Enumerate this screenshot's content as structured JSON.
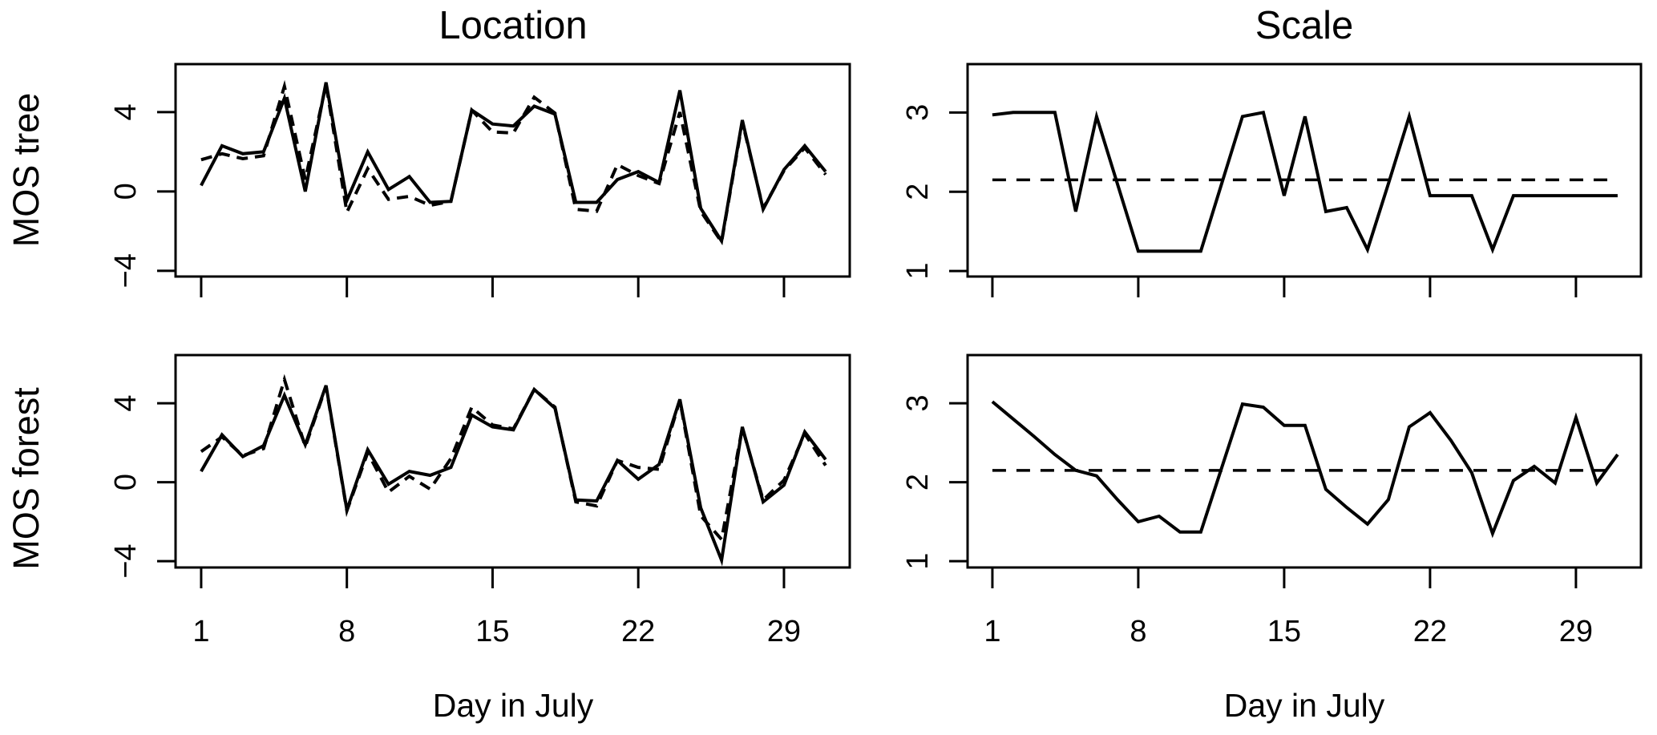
{
  "page": {
    "background": "#ffffff",
    "foreground": "#000000"
  },
  "column_titles": {
    "left": "Location",
    "right": "Scale"
  },
  "row_labels": {
    "top": "MOS tree",
    "bottom": "MOS forest"
  },
  "x_axis_label": "Day in July",
  "chart_data": [
    {
      "id": "location-mos-tree",
      "type": "line",
      "title": "Location",
      "row_label": "MOS tree",
      "xlabel": "",
      "x": [
        1,
        2,
        3,
        4,
        5,
        6,
        7,
        8,
        9,
        10,
        11,
        12,
        13,
        14,
        15,
        16,
        17,
        18,
        19,
        20,
        21,
        22,
        23,
        24,
        25,
        26,
        27,
        28,
        29,
        30,
        31
      ],
      "series": [
        {
          "name": "solid-line",
          "style": "solid",
          "color": "#000000",
          "values": [
            0.3,
            2.3,
            1.9,
            2.0,
            4.7,
            0.0,
            5.5,
            -0.45,
            2.0,
            0.1,
            0.75,
            -0.55,
            -0.5,
            4.1,
            3.4,
            3.3,
            4.3,
            3.9,
            -0.55,
            -0.55,
            0.6,
            1.0,
            0.45,
            5.1,
            -0.85,
            -2.5,
            3.6,
            -0.9,
            1.1,
            2.3,
            1.0
          ]
        },
        {
          "name": "dashed-line",
          "style": "dashed",
          "color": "#000000",
          "values": [
            1.6,
            1.9,
            1.65,
            1.8,
            5.3,
            0.6,
            5.4,
            -1.05,
            1.15,
            -0.4,
            -0.25,
            -0.7,
            -0.5,
            4.1,
            3.0,
            2.95,
            4.75,
            3.95,
            -0.9,
            -1.0,
            1.35,
            0.8,
            0.4,
            4.0,
            -1.0,
            -2.55,
            3.5,
            -0.85,
            1.05,
            2.2,
            0.85
          ]
        }
      ],
      "ref_line": null,
      "xticks": [
        1,
        8,
        15,
        22,
        29
      ],
      "show_xtick_labels": false,
      "yticks": [
        {
          "value": 4,
          "label": "4"
        },
        {
          "value": 0,
          "label": "0"
        },
        {
          "value": -4,
          "label": "−4"
        }
      ],
      "xlim": [
        -0.23,
        32.16
      ],
      "ylim": [
        -4.29,
        6.42
      ],
      "grid": false,
      "legend": "none"
    },
    {
      "id": "scale-mos-tree",
      "type": "line",
      "title": "Scale",
      "row_label": "",
      "xlabel": "",
      "x": [
        1,
        2,
        3,
        4,
        5,
        6,
        7,
        8,
        9,
        10,
        11,
        12,
        13,
        14,
        15,
        16,
        17,
        18,
        19,
        20,
        21,
        22,
        23,
        24,
        25,
        26,
        27,
        28,
        29,
        30,
        31
      ],
      "series": [
        {
          "name": "solid-line",
          "style": "solid",
          "color": "#000000",
          "values": [
            2.97,
            3.0,
            3.0,
            3.0,
            1.75,
            2.95,
            2.1,
            1.25,
            1.25,
            1.25,
            1.25,
            2.1,
            2.95,
            3.0,
            1.95,
            2.95,
            1.75,
            1.8,
            1.27,
            2.1,
            2.95,
            1.95,
            1.95,
            1.95,
            1.27,
            1.95,
            1.95,
            1.95,
            1.95,
            1.95,
            1.95
          ]
        }
      ],
      "ref_line": 2.15,
      "xticks": [
        1,
        8,
        15,
        22,
        29
      ],
      "show_xtick_labels": false,
      "yticks": [
        {
          "value": 3,
          "label": "3"
        },
        {
          "value": 2,
          "label": "2"
        },
        {
          "value": 1,
          "label": "1"
        }
      ],
      "xlim": [
        -0.19,
        32.12
      ],
      "ylim": [
        0.93,
        3.61
      ],
      "grid": false,
      "legend": "none"
    },
    {
      "id": "location-mos-forest",
      "type": "line",
      "title": "",
      "row_label": "MOS forest",
      "xlabel": "Day in July",
      "x": [
        1,
        2,
        3,
        4,
        5,
        6,
        7,
        8,
        9,
        10,
        11,
        12,
        13,
        14,
        15,
        16,
        17,
        18,
        19,
        20,
        21,
        22,
        23,
        24,
        25,
        26,
        27,
        28,
        29,
        30,
        31
      ],
      "series": [
        {
          "name": "solid-line",
          "style": "solid",
          "color": "#000000",
          "values": [
            0.55,
            2.4,
            1.3,
            1.85,
            4.4,
            1.9,
            4.9,
            -1.4,
            1.65,
            -0.1,
            0.55,
            0.35,
            0.75,
            3.4,
            2.8,
            2.65,
            4.7,
            3.75,
            -0.9,
            -0.95,
            1.1,
            0.15,
            0.9,
            4.2,
            -1.3,
            -3.95,
            2.8,
            -1.0,
            -0.15,
            2.55,
            1.15
          ]
        },
        {
          "name": "dashed-line",
          "style": "dashed",
          "color": "#000000",
          "values": [
            1.55,
            2.3,
            1.35,
            1.7,
            5.2,
            1.8,
            4.85,
            -1.45,
            1.5,
            -0.5,
            0.3,
            -0.35,
            1.2,
            3.8,
            2.9,
            2.7,
            4.7,
            3.8,
            -1.0,
            -1.2,
            1.1,
            0.75,
            0.65,
            4.15,
            -1.7,
            -2.9,
            2.75,
            -0.9,
            0.1,
            2.45,
            0.85
          ]
        }
      ],
      "ref_line": null,
      "xticks": [
        1,
        8,
        15,
        22,
        29
      ],
      "show_xtick_labels": true,
      "xtick_labels": [
        "1",
        "8",
        "15",
        "22",
        "29"
      ],
      "yticks": [
        {
          "value": 4,
          "label": "4"
        },
        {
          "value": 0,
          "label": "0"
        },
        {
          "value": -4,
          "label": "−4"
        }
      ],
      "xlim": [
        -0.23,
        32.16
      ],
      "ylim": [
        -4.32,
        6.44
      ],
      "grid": false,
      "legend": "none"
    },
    {
      "id": "scale-mos-forest",
      "type": "line",
      "title": "",
      "row_label": "",
      "xlabel": "Day in July",
      "x": [
        1,
        2,
        3,
        4,
        5,
        6,
        7,
        8,
        9,
        10,
        11,
        12,
        13,
        14,
        15,
        16,
        17,
        18,
        19,
        20,
        21,
        22,
        23,
        24,
        25,
        26,
        27,
        28,
        29,
        30,
        31
      ],
      "series": [
        {
          "name": "solid-line",
          "style": "solid",
          "color": "#000000",
          "values": [
            3.02,
            2.8,
            2.58,
            2.35,
            2.15,
            2.08,
            1.78,
            1.5,
            1.57,
            1.37,
            1.37,
            2.18,
            2.99,
            2.95,
            2.72,
            2.72,
            1.91,
            1.68,
            1.47,
            1.78,
            2.7,
            2.88,
            2.53,
            2.12,
            1.35,
            2.02,
            2.2,
            1.99,
            2.82,
            1.99,
            2.35
          ]
        }
      ],
      "ref_line": 2.15,
      "xticks": [
        1,
        8,
        15,
        22,
        29
      ],
      "show_xtick_labels": true,
      "xtick_labels": [
        "1",
        "8",
        "15",
        "22",
        "29"
      ],
      "yticks": [
        {
          "value": 3,
          "label": "3"
        },
        {
          "value": 2,
          "label": "2"
        },
        {
          "value": 1,
          "label": "1"
        }
      ],
      "xlim": [
        -0.19,
        32.12
      ],
      "ylim": [
        0.92,
        3.61
      ],
      "grid": false,
      "legend": "none"
    }
  ]
}
